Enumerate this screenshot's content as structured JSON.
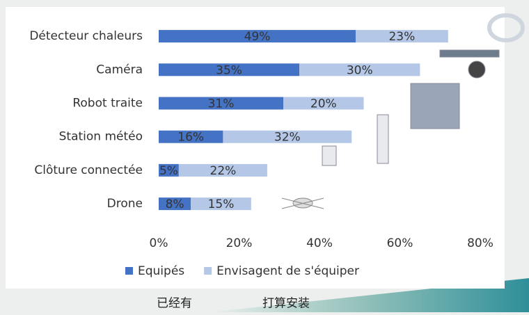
{
  "chart_data": {
    "type": "bar",
    "orientation": "horizontal",
    "stacked": true,
    "categories": [
      "Détecteur chaleurs",
      "Caméra",
      "Robot traite",
      "Station météo",
      "Clôture connectée",
      "Drone"
    ],
    "series": [
      {
        "name": "Equipés",
        "color": "#4472c4",
        "values": [
          49,
          35,
          31,
          16,
          5,
          8
        ],
        "value_labels": [
          "49%",
          "35%",
          "31%",
          "16%",
          "5%",
          "8%"
        ]
      },
      {
        "name": "Envisagent de s'équiper",
        "color": "#b4c7e7",
        "values": [
          23,
          30,
          20,
          32,
          22,
          15
        ],
        "value_labels": [
          "23%",
          "30%",
          "20%",
          "32%",
          "22%",
          "15%"
        ]
      }
    ],
    "xlim": [
      0,
      80
    ],
    "xticks": [
      {
        "value": 0,
        "label": "0%"
      },
      {
        "value": 20,
        "label": "20%"
      },
      {
        "value": 40,
        "label": "40%"
      },
      {
        "value": 60,
        "label": "60%"
      },
      {
        "value": 80,
        "label": "80%"
      }
    ],
    "grid": false,
    "legend": "bottom"
  },
  "captions": [
    "已经有",
    "打算安装"
  ]
}
